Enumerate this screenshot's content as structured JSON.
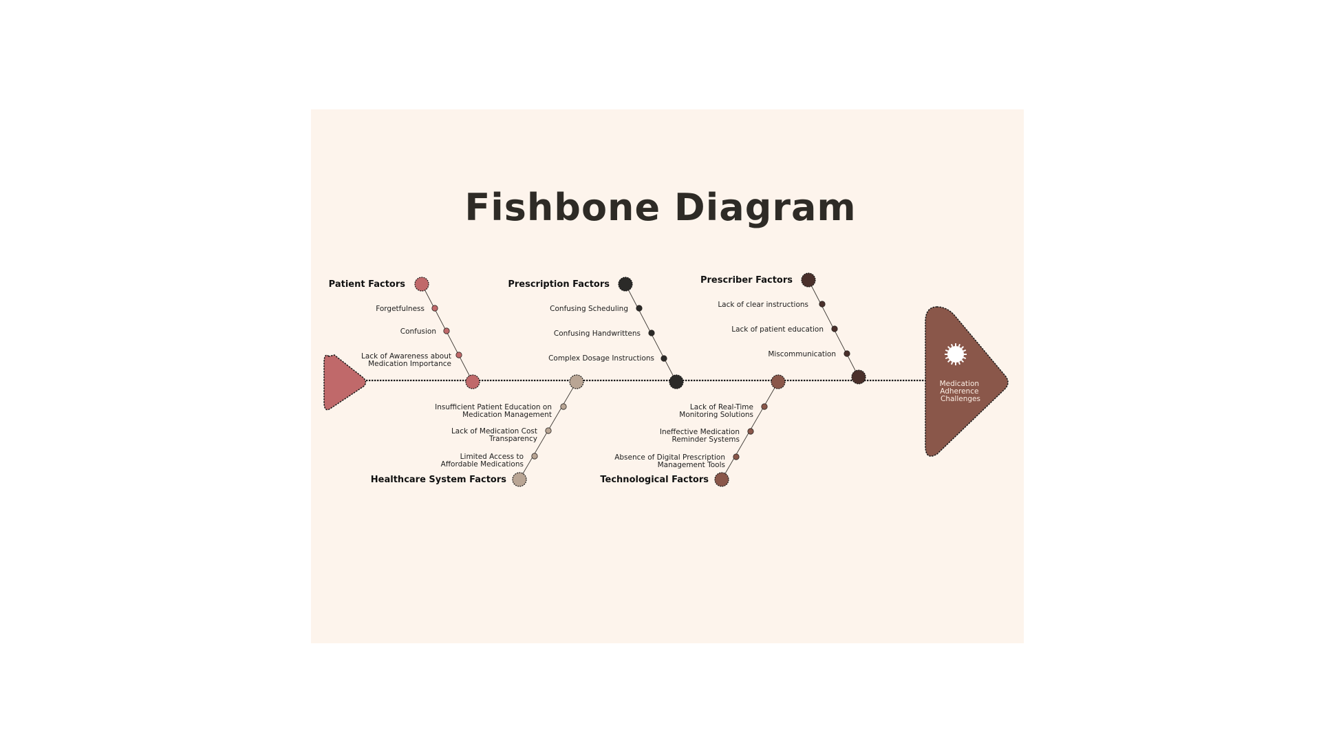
{
  "title": "Fishbone Diagram",
  "head": {
    "label_lines": [
      "Medication",
      "Adherence",
      "Challenges"
    ],
    "color": "#8a574a"
  },
  "tail": {
    "color": "#c0696a"
  },
  "categories": [
    {
      "name": "Patient Factors",
      "color": "#c0696a",
      "causes": [
        [
          "Forgetfulness"
        ],
        [
          "Confusion"
        ],
        [
          "Lack of Awareness about",
          "Medication Importance"
        ]
      ]
    },
    {
      "name": "Prescription Factors",
      "color": "#2b2a28",
      "causes": [
        [
          "Confusing Scheduling"
        ],
        [
          "Confusing Handwrittens"
        ],
        [
          "Complex Dosage Instructions"
        ]
      ]
    },
    {
      "name": "Prescriber Factors",
      "color": "#4a302b",
      "causes": [
        [
          "Lack of clear instructions"
        ],
        [
          "Lack of patient education"
        ],
        [
          "Miscommunication"
        ]
      ]
    },
    {
      "name": "Healthcare System Factors",
      "color": "#b9a594",
      "causes": [
        [
          "Insufficient Patient Education on",
          "Medication Management"
        ],
        [
          "Lack of Medication Cost",
          "Transparency"
        ],
        [
          "Limited Access to",
          "Affordable Medications"
        ]
      ]
    },
    {
      "name": "Technological Factors",
      "color": "#8a574a",
      "causes": [
        [
          "Lack of Real-Time",
          "Monitoring Solutions"
        ],
        [
          "Ineffective Medication",
          "Reminder Systems"
        ],
        [
          "Absence of Digital Prescription",
          "Management Tools"
        ]
      ]
    }
  ]
}
